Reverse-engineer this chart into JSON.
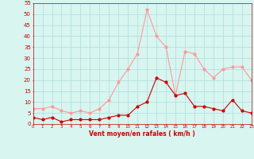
{
  "x": [
    0,
    1,
    2,
    3,
    4,
    5,
    6,
    7,
    8,
    9,
    10,
    11,
    12,
    13,
    14,
    15,
    16,
    17,
    18,
    19,
    20,
    21,
    22,
    23
  ],
  "wind_avg": [
    3,
    2,
    3,
    1,
    2,
    2,
    2,
    2,
    3,
    4,
    4,
    8,
    10,
    21,
    19,
    13,
    14,
    8,
    8,
    7,
    6,
    11,
    6,
    5
  ],
  "wind_gust": [
    7,
    7,
    8,
    6,
    5,
    6,
    5,
    7,
    11,
    19,
    25,
    32,
    52,
    40,
    35,
    13,
    33,
    32,
    25,
    21,
    25,
    26,
    26,
    20
  ],
  "xlabel": "Vent moyen/en rafales ( km/h )",
  "ylabel_ticks": [
    0,
    5,
    10,
    15,
    20,
    25,
    30,
    35,
    40,
    45,
    50,
    55
  ],
  "bg_color": "#d8f5f0",
  "grid_color": "#aadddd",
  "line_avg_color": "#cc0000",
  "line_gust_color": "#ff9999",
  "xlabel_color": "#cc0000",
  "tick_color": "#cc0000",
  "spine_color": "#cc0000",
  "ylim": [
    0,
    55
  ],
  "xlim": [
    0,
    23
  ]
}
